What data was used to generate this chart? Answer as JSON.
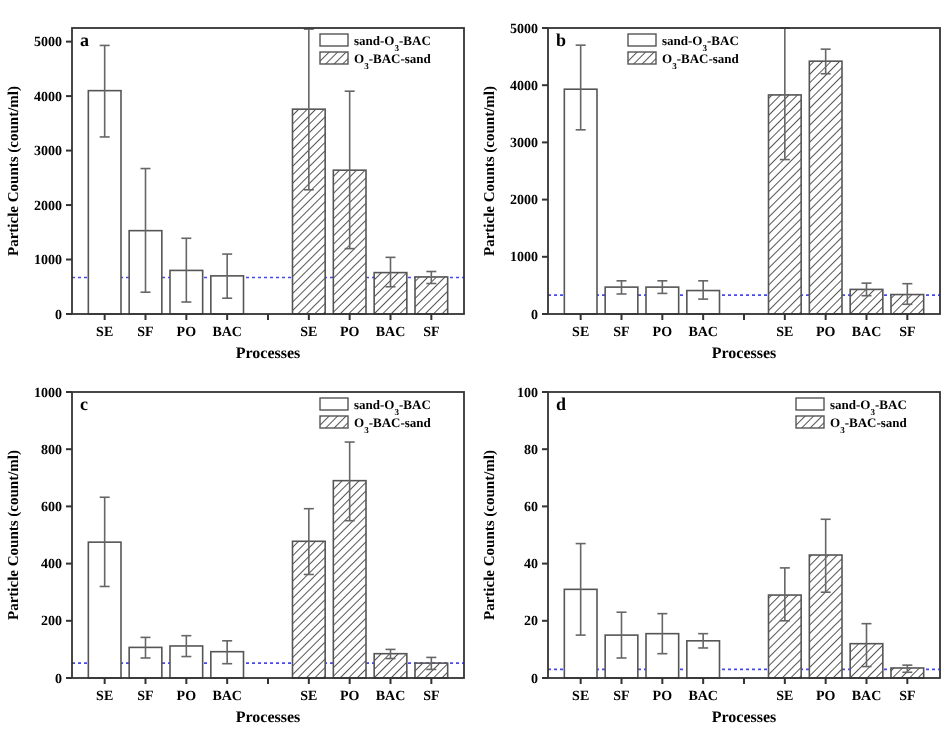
{
  "chart_data": [
    {
      "type": "bar",
      "xlabel": "Processes",
      "ylabel": "Particle Counts (count/ml)",
      "annotations": [
        "a"
      ],
      "categories": [
        "SE",
        "SF",
        "PO",
        "BAC",
        null,
        "SE",
        "PO",
        "BAC",
        "SF"
      ],
      "ylim": [
        0,
        5250
      ],
      "yticks": [
        0,
        1000,
        2000,
        3000,
        4000,
        5000
      ],
      "legend": "top right",
      "grid": false,
      "ref_lines": [
        {
          "axis": "y",
          "value": 670,
          "color": "#4b4bd6",
          "line_style": "dotted"
        }
      ],
      "series": [
        {
          "name": "sand-O$_{3}$-BAC",
          "color": "#ffffff",
          "values": [
            4100,
            1530,
            800,
            700,
            null,
            null,
            null,
            null,
            null
          ],
          "errors": [
            [
              3250,
              4930
            ],
            [
              400,
              2670
            ],
            [
              220,
              1390
            ],
            [
              290,
              1100
            ],
            null,
            null,
            null,
            null,
            null
          ]
        },
        {
          "name": "O$_{3}$-BAC-sand",
          "color": "#555555",
          "values": [
            null,
            null,
            null,
            null,
            null,
            3760,
            2640,
            760,
            680
          ],
          "errors": [
            null,
            null,
            null,
            null,
            null,
            [
              2280,
              5230
            ],
            [
              1200,
              4090
            ],
            [
              500,
              1040
            ],
            [
              560,
              780
            ]
          ]
        }
      ]
    },
    {
      "type": "bar",
      "xlabel": "Processes",
      "ylabel": "Particle Counts (count/ml)",
      "annotations": [
        "b"
      ],
      "categories": [
        "SE",
        "SF",
        "PO",
        "BAC",
        null,
        "SE",
        "PO",
        "BAC",
        "SF"
      ],
      "ylim": [
        0,
        5000
      ],
      "yticks": [
        0,
        1000,
        2000,
        3000,
        4000,
        5000
      ],
      "legend": "top left",
      "grid": false,
      "ref_lines": [
        {
          "axis": "y",
          "value": 330,
          "color": "#4b4bd6",
          "line_style": "dotted"
        }
      ],
      "series": [
        {
          "name": "sand-O$_{3}$-BAC",
          "color": "#ffffff",
          "values": [
            3930,
            470,
            470,
            410,
            null,
            null,
            null,
            null,
            null
          ],
          "errors": [
            [
              3220,
              4700
            ],
            [
              350,
              580
            ],
            [
              360,
              580
            ],
            [
              260,
              580
            ],
            null,
            null,
            null,
            null,
            null
          ]
        },
        {
          "name": "O$_{3}$-BAC-sand",
          "color": "#555555",
          "values": [
            null,
            null,
            null,
            null,
            null,
            3830,
            4420,
            430,
            340
          ],
          "errors": [
            null,
            null,
            null,
            null,
            null,
            [
              2700,
              5000
            ],
            [
              4200,
              4630
            ],
            [
              320,
              540
            ],
            [
              170,
              530
            ]
          ]
        }
      ]
    },
    {
      "type": "bar",
      "xlabel": "Processes",
      "ylabel": "Particle Counts (count/ml)",
      "annotations": [
        "c"
      ],
      "categories": [
        "SE",
        "SF",
        "PO",
        "BAC",
        null,
        "SE",
        "PO",
        "BAC",
        "SF"
      ],
      "ylim": [
        0,
        1000
      ],
      "yticks": [
        0,
        200,
        400,
        600,
        800,
        1000
      ],
      "legend": "top right",
      "grid": false,
      "ref_lines": [
        {
          "axis": "y",
          "value": 52,
          "color": "#4b4bd6",
          "line_style": "dotted"
        }
      ],
      "series": [
        {
          "name": "sand-O$_{3}$-BAC",
          "color": "#ffffff",
          "values": [
            475,
            107,
            112,
            92,
            null,
            null,
            null,
            null,
            null
          ],
          "errors": [
            [
              320,
              632
            ],
            [
              70,
              142
            ],
            [
              75,
              148
            ],
            [
              50,
              130
            ],
            null,
            null,
            null,
            null,
            null
          ]
        },
        {
          "name": "O$_{3}$-BAC-sand",
          "color": "#555555",
          "values": [
            null,
            null,
            null,
            null,
            null,
            478,
            690,
            85,
            52
          ],
          "errors": [
            null,
            null,
            null,
            null,
            null,
            [
              362,
              592
            ],
            [
              550,
              825
            ],
            [
              68,
              100
            ],
            [
              30,
              72
            ]
          ]
        }
      ]
    },
    {
      "type": "bar",
      "xlabel": "Processes",
      "ylabel": "Particle Counts (count/ml)",
      "annotations": [
        "d"
      ],
      "categories": [
        "SE",
        "SF",
        "PO",
        "BAC",
        null,
        "SE",
        "PO",
        "BAC",
        "SF"
      ],
      "ylim": [
        0,
        100
      ],
      "yticks": [
        0,
        20,
        40,
        60,
        80,
        100
      ],
      "legend": "top right",
      "grid": false,
      "ref_lines": [
        {
          "axis": "y",
          "value": 3,
          "color": "#4b4bd6",
          "line_style": "dotted"
        }
      ],
      "series": [
        {
          "name": "sand-O$_{3}$-BAC",
          "color": "#ffffff",
          "values": [
            31,
            15,
            15.5,
            13,
            null,
            null,
            null,
            null,
            null
          ],
          "errors": [
            [
              15,
              47
            ],
            [
              7,
              23
            ],
            [
              8.5,
              22.5
            ],
            [
              10.5,
              15.5
            ],
            null,
            null,
            null,
            null,
            null
          ]
        },
        {
          "name": "O$_{3}$-BAC-sand",
          "color": "#555555",
          "values": [
            null,
            null,
            null,
            null,
            null,
            29,
            43,
            12,
            3.5
          ],
          "errors": [
            null,
            null,
            null,
            null,
            null,
            [
              20,
              38.5
            ],
            [
              30,
              55.5
            ],
            [
              4,
              19
            ],
            [
              2,
              4.5
            ]
          ]
        }
      ]
    }
  ]
}
